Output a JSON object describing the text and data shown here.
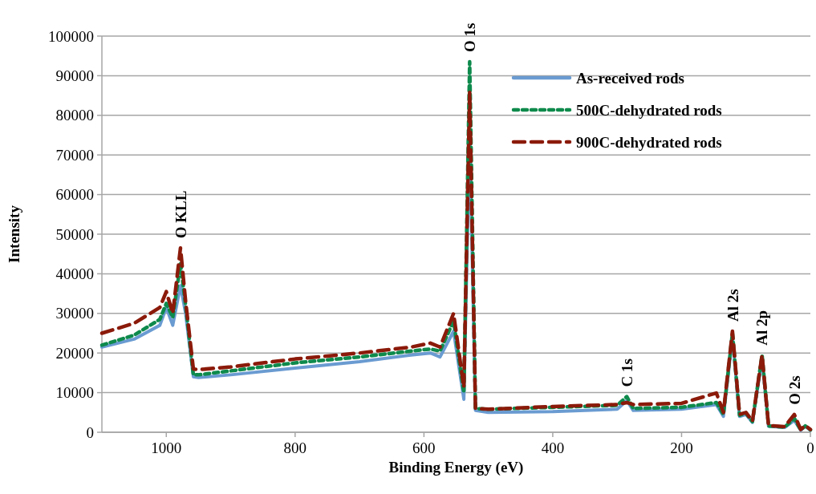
{
  "chart_data": {
    "type": "line",
    "xlabel": "Binding Energy (eV)",
    "ylabel": "Intensity",
    "x": [
      1100,
      1050,
      1010,
      1000,
      990,
      978,
      970,
      958,
      950,
      900,
      800,
      700,
      620,
      590,
      575,
      554,
      538,
      529,
      520,
      500,
      400,
      300,
      285,
      275,
      200,
      146,
      135,
      121,
      110,
      100,
      90,
      75,
      65,
      40,
      25,
      15,
      8,
      0
    ],
    "series": [
      {
        "name": "As-received rods",
        "color": "#6a9bd1",
        "line_style": "solid",
        "values": [
          21500,
          23500,
          27000,
          31500,
          27000,
          37000,
          30000,
          14000,
          13800,
          14500,
          16200,
          17800,
          19500,
          20000,
          19000,
          25500,
          8300,
          75000,
          5500,
          5000,
          5200,
          5800,
          8000,
          5500,
          5800,
          7000,
          4000,
          24000,
          4000,
          4500,
          2500,
          18500,
          1500,
          1200,
          3000,
          500,
          1500,
          500
        ]
      },
      {
        "name": "500C-dehydrated rods",
        "color": "#0e8a4c",
        "line_style": "dotted",
        "values": [
          22000,
          24500,
          28500,
          32500,
          29000,
          42500,
          32000,
          14500,
          14500,
          15500,
          17500,
          19000,
          20500,
          21000,
          20500,
          28100,
          10000,
          93500,
          6000,
          5800,
          6300,
          6800,
          9000,
          6000,
          6300,
          7500,
          4500,
          25000,
          4300,
          4800,
          2700,
          19500,
          1600,
          1300,
          3500,
          600,
          1600,
          600
        ]
      },
      {
        "name": "900C-dehydrated rods",
        "color": "#8b1a0a",
        "line_style": "dashed",
        "values": [
          25000,
          27500,
          31500,
          35500,
          30000,
          46500,
          33000,
          16000,
          15800,
          16500,
          18500,
          20000,
          21500,
          22500,
          21500,
          30000,
          11300,
          86000,
          6000,
          5800,
          6500,
          7000,
          7500,
          7000,
          7300,
          9900,
          5000,
          25500,
          4500,
          5000,
          2800,
          19500,
          1700,
          1400,
          4500,
          700,
          1700,
          700
        ]
      }
    ],
    "xlim": [
      1100,
      0
    ],
    "xticks": [
      1000,
      800,
      600,
      400,
      200,
      0
    ],
    "ylim": [
      0,
      100000
    ],
    "yticks": [
      0,
      10000,
      20000,
      30000,
      40000,
      50000,
      60000,
      70000,
      80000,
      90000,
      100000
    ],
    "grid": "y",
    "legend": "top right",
    "annotations": [
      {
        "text": "O KLL",
        "x": 978,
        "y": 46500
      },
      {
        "text": "O 1s",
        "x": 529,
        "y": 93500
      },
      {
        "text": "C 1s",
        "x": 285,
        "y": 9000
      },
      {
        "text": "Al 2s",
        "x": 121,
        "y": 25500
      },
      {
        "text": "Al 2p",
        "x": 75,
        "y": 19500
      },
      {
        "text": "O 2s",
        "x": 25,
        "y": 4500
      }
    ]
  }
}
